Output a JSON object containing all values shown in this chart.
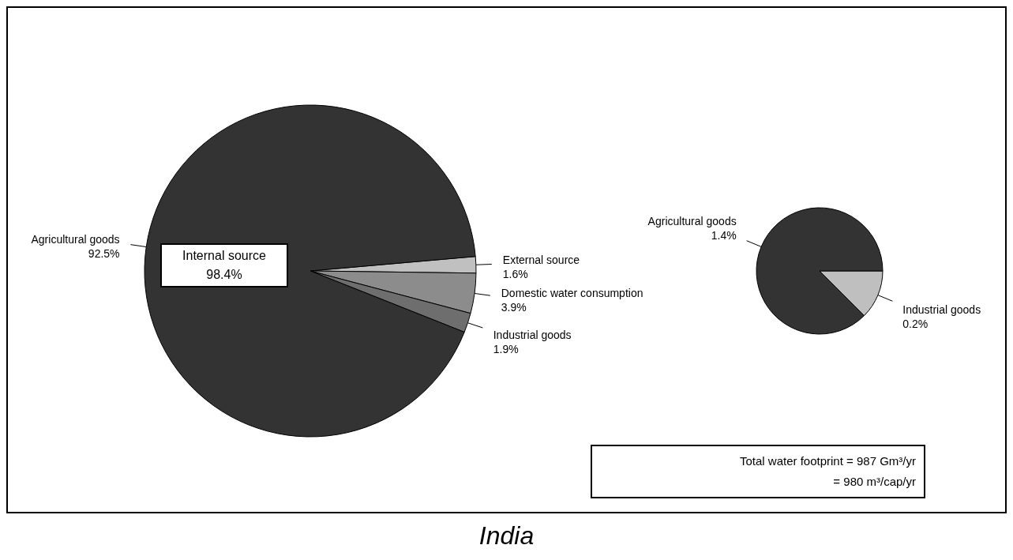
{
  "chart_data": [
    {
      "type": "pie",
      "categories": [
        "External source",
        "Domestic water consumption",
        "Industrial goods",
        "Agricultural goods"
      ],
      "values": [
        1.6,
        3.9,
        1.9,
        92.5
      ],
      "colors": [
        "#c0c0c0",
        "#8c8c8c",
        "#6e6e6e",
        "#333333"
      ],
      "value_labels": [
        "1.6%",
        "3.9%",
        "1.9%",
        "92.5%"
      ],
      "annotations": [
        "Internal source 98.4%",
        "India"
      ]
    },
    {
      "type": "pie",
      "categories": [
        "Industrial goods",
        "Agricultural goods"
      ],
      "values": [
        0.2,
        1.4
      ],
      "colors": [
        "#bfbfbf",
        "#333333"
      ],
      "value_labels": [
        "0.2%",
        "1.4%"
      ],
      "annotations": [
        "Total water footprint = 987 Gm³/yr",
        "= 980 m³/cap/yr"
      ]
    }
  ]
}
